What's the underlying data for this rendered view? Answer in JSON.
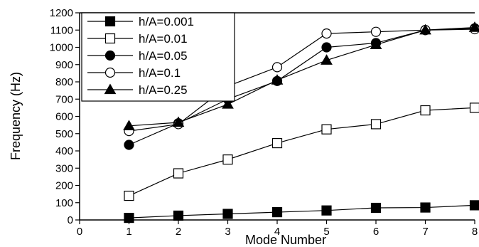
{
  "chart_data": {
    "type": "line",
    "xlabel": "Mode Number",
    "ylabel": "Frequency (Hz)",
    "xlim": [
      0,
      8
    ],
    "ylim": [
      0,
      1200
    ],
    "x_ticks": [
      0,
      1,
      2,
      3,
      4,
      5,
      6,
      7,
      8
    ],
    "y_ticks": [
      0,
      100,
      200,
      300,
      400,
      500,
      600,
      700,
      800,
      900,
      1000,
      1100,
      1200
    ],
    "grid": false,
    "legend_position": "top-left",
    "x": [
      1,
      2,
      3,
      4,
      5,
      6,
      7,
      8
    ],
    "series": [
      {
        "name": "h/A=0.001",
        "marker": "filled-square",
        "color": "#000000",
        "values": [
          12,
          25,
          35,
          45,
          55,
          70,
          72,
          85
        ]
      },
      {
        "name": "h/A=0.01",
        "marker": "open-square",
        "color": "#000000",
        "values": [
          140,
          270,
          350,
          445,
          525,
          555,
          635,
          650
        ]
      },
      {
        "name": "h/A=0.05",
        "marker": "filled-circle",
        "color": "#000000",
        "values": [
          435,
          560,
          700,
          805,
          1000,
          1025,
          1100,
          1110
        ]
      },
      {
        "name": "h/A=0.1",
        "marker": "open-circle",
        "color": "#000000",
        "values": [
          515,
          555,
          775,
          885,
          1080,
          1090,
          1100,
          1105
        ]
      },
      {
        "name": "h/A=0.25",
        "marker": "filled-triangle",
        "color": "#000000",
        "values": [
          545,
          565,
          670,
          810,
          925,
          1015,
          1100,
          1115
        ]
      }
    ]
  }
}
